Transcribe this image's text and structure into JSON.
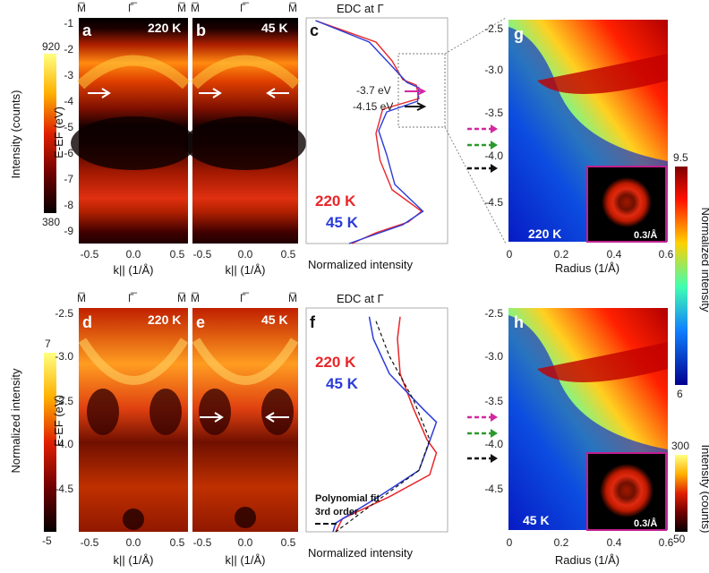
{
  "figure": {
    "sym_M": "M̅",
    "sym_G": "Γ̅",
    "panels": {
      "a": {
        "label": "a",
        "temp": "220 K"
      },
      "b": {
        "label": "b",
        "temp": "45 K"
      },
      "c": {
        "label": "c",
        "title": "EDC at Γ",
        "xlabel": "Normalized intensity",
        "legend": [
          "220 K",
          "45 K"
        ],
        "ann1": "-3.7 eV",
        "ann2": "-4.15 eV"
      },
      "d": {
        "label": "d",
        "temp": "220 K"
      },
      "e": {
        "label": "e",
        "temp": "45 K"
      },
      "f": {
        "label": "f",
        "title": "EDC at Γ",
        "xlabel": "Normalized intensity",
        "legend": [
          "220 K",
          "45 K"
        ],
        "fit1": "Polynomial fit",
        "fit2": "3rd order"
      },
      "g": {
        "label": "g",
        "temp": "220 K",
        "scale": "0.3/Å"
      },
      "h": {
        "label": "h",
        "temp": "45 K",
        "scale": "0.3/Å"
      }
    },
    "axes": {
      "k_label": "k|| (1/Å)",
      "k_ticks": [
        "-0.5",
        "0.0",
        "0.5"
      ],
      "E_label": "E-EF (eV)",
      "E_ticks_top": [
        "-1",
        "-2",
        "-3",
        "-4",
        "-5",
        "-6",
        "-7",
        "-8",
        "-9"
      ],
      "E_ticks_bottom": [
        "-2.5",
        "-3.0",
        "-3.5",
        "-4.0",
        "-4.5"
      ],
      "radius_label": "Radius (1/Å)",
      "radius_ticks": [
        "0",
        "0.2",
        "0.4",
        "0.6"
      ],
      "radius_E_ticks": [
        "-2.5",
        "-3.0",
        "-3.5",
        "-4.0",
        "-4.5"
      ]
    },
    "colorbars": {
      "top_left": {
        "label": "Intensity (counts)",
        "max": "920",
        "min": "380"
      },
      "bottom_left": {
        "label": "Normalized intensity",
        "max": "7",
        "min": "-5"
      },
      "right_top": {
        "label": "Normalized intensity",
        "max": "9.5",
        "min": "6"
      },
      "right_bottom": {
        "label": "Intensity (counts)",
        "max": "300",
        "min": "50"
      }
    },
    "colors": {
      "red": "#e8262a",
      "blue": "#2a3bd8",
      "magenta": "#d4279f",
      "green": "#2a9a2a",
      "black": "#111111"
    }
  },
  "chart_data": [
    {
      "type": "line",
      "title": "EDC at Γ",
      "panel": "c",
      "xlabel": "Normalized intensity",
      "ylabel": "E-EF (eV)",
      "ylim": [
        -9.3,
        -0.9
      ],
      "series": [
        {
          "name": "220 K",
          "points": [
            [
              0.05,
              -1.0
            ],
            [
              0.22,
              -1.3
            ],
            [
              0.5,
              -1.8
            ],
            [
              0.62,
              -2.5
            ],
            [
              0.7,
              -3.2
            ],
            [
              0.8,
              -3.4
            ],
            [
              0.82,
              -3.9
            ],
            [
              0.55,
              -4.3
            ],
            [
              0.5,
              -5.2
            ],
            [
              0.53,
              -6.2
            ],
            [
              0.62,
              -7.3
            ],
            [
              0.84,
              -8.1
            ],
            [
              0.74,
              -8.5
            ],
            [
              0.5,
              -8.9
            ],
            [
              0.32,
              -9.3
            ]
          ]
        },
        {
          "name": "45 K",
          "points": [
            [
              0.05,
              -1.0
            ],
            [
              0.2,
              -1.3
            ],
            [
              0.45,
              -1.8
            ],
            [
              0.6,
              -2.6
            ],
            [
              0.73,
              -3.3
            ],
            [
              0.82,
              -3.5
            ],
            [
              0.81,
              -4.0
            ],
            [
              0.58,
              -4.4
            ],
            [
              0.52,
              -5.1
            ],
            [
              0.58,
              -6.0
            ],
            [
              0.64,
              -7.1
            ],
            [
              0.85,
              -8.1
            ],
            [
              0.7,
              -8.6
            ],
            [
              0.47,
              -9.0
            ],
            [
              0.3,
              -9.3
            ]
          ]
        }
      ]
    },
    {
      "type": "line",
      "title": "EDC at Γ",
      "panel": "f",
      "xlabel": "Normalized intensity",
      "ylabel": "E-EF (eV)",
      "ylim": [
        -5.0,
        -2.45
      ],
      "series": [
        {
          "name": "220 K",
          "points": [
            [
              0.68,
              -2.55
            ],
            [
              0.66,
              -2.8
            ],
            [
              0.68,
              -3.2
            ],
            [
              0.78,
              -3.6
            ],
            [
              0.88,
              -3.95
            ],
            [
              0.95,
              -4.1
            ],
            [
              0.9,
              -4.35
            ],
            [
              0.6,
              -4.6
            ],
            [
              0.25,
              -4.85
            ],
            [
              0.2,
              -5.0
            ]
          ]
        },
        {
          "name": "45 K",
          "points": [
            [
              0.45,
              -2.55
            ],
            [
              0.48,
              -2.8
            ],
            [
              0.6,
              -3.2
            ],
            [
              0.85,
              -3.6
            ],
            [
              0.95,
              -3.75
            ],
            [
              0.88,
              -4.05
            ],
            [
              0.82,
              -4.3
            ],
            [
              0.52,
              -4.6
            ],
            [
              0.2,
              -4.9
            ],
            [
              0.18,
              -5.0
            ]
          ]
        },
        {
          "name": "Polynomial fit 3rd order",
          "points": [
            [
              0.5,
              -2.6
            ],
            [
              0.6,
              -3.0
            ],
            [
              0.78,
              -3.5
            ],
            [
              0.9,
              -3.95
            ],
            [
              0.82,
              -4.3
            ],
            [
              0.55,
              -4.6
            ],
            [
              0.2,
              -5.0
            ]
          ]
        }
      ]
    }
  ]
}
